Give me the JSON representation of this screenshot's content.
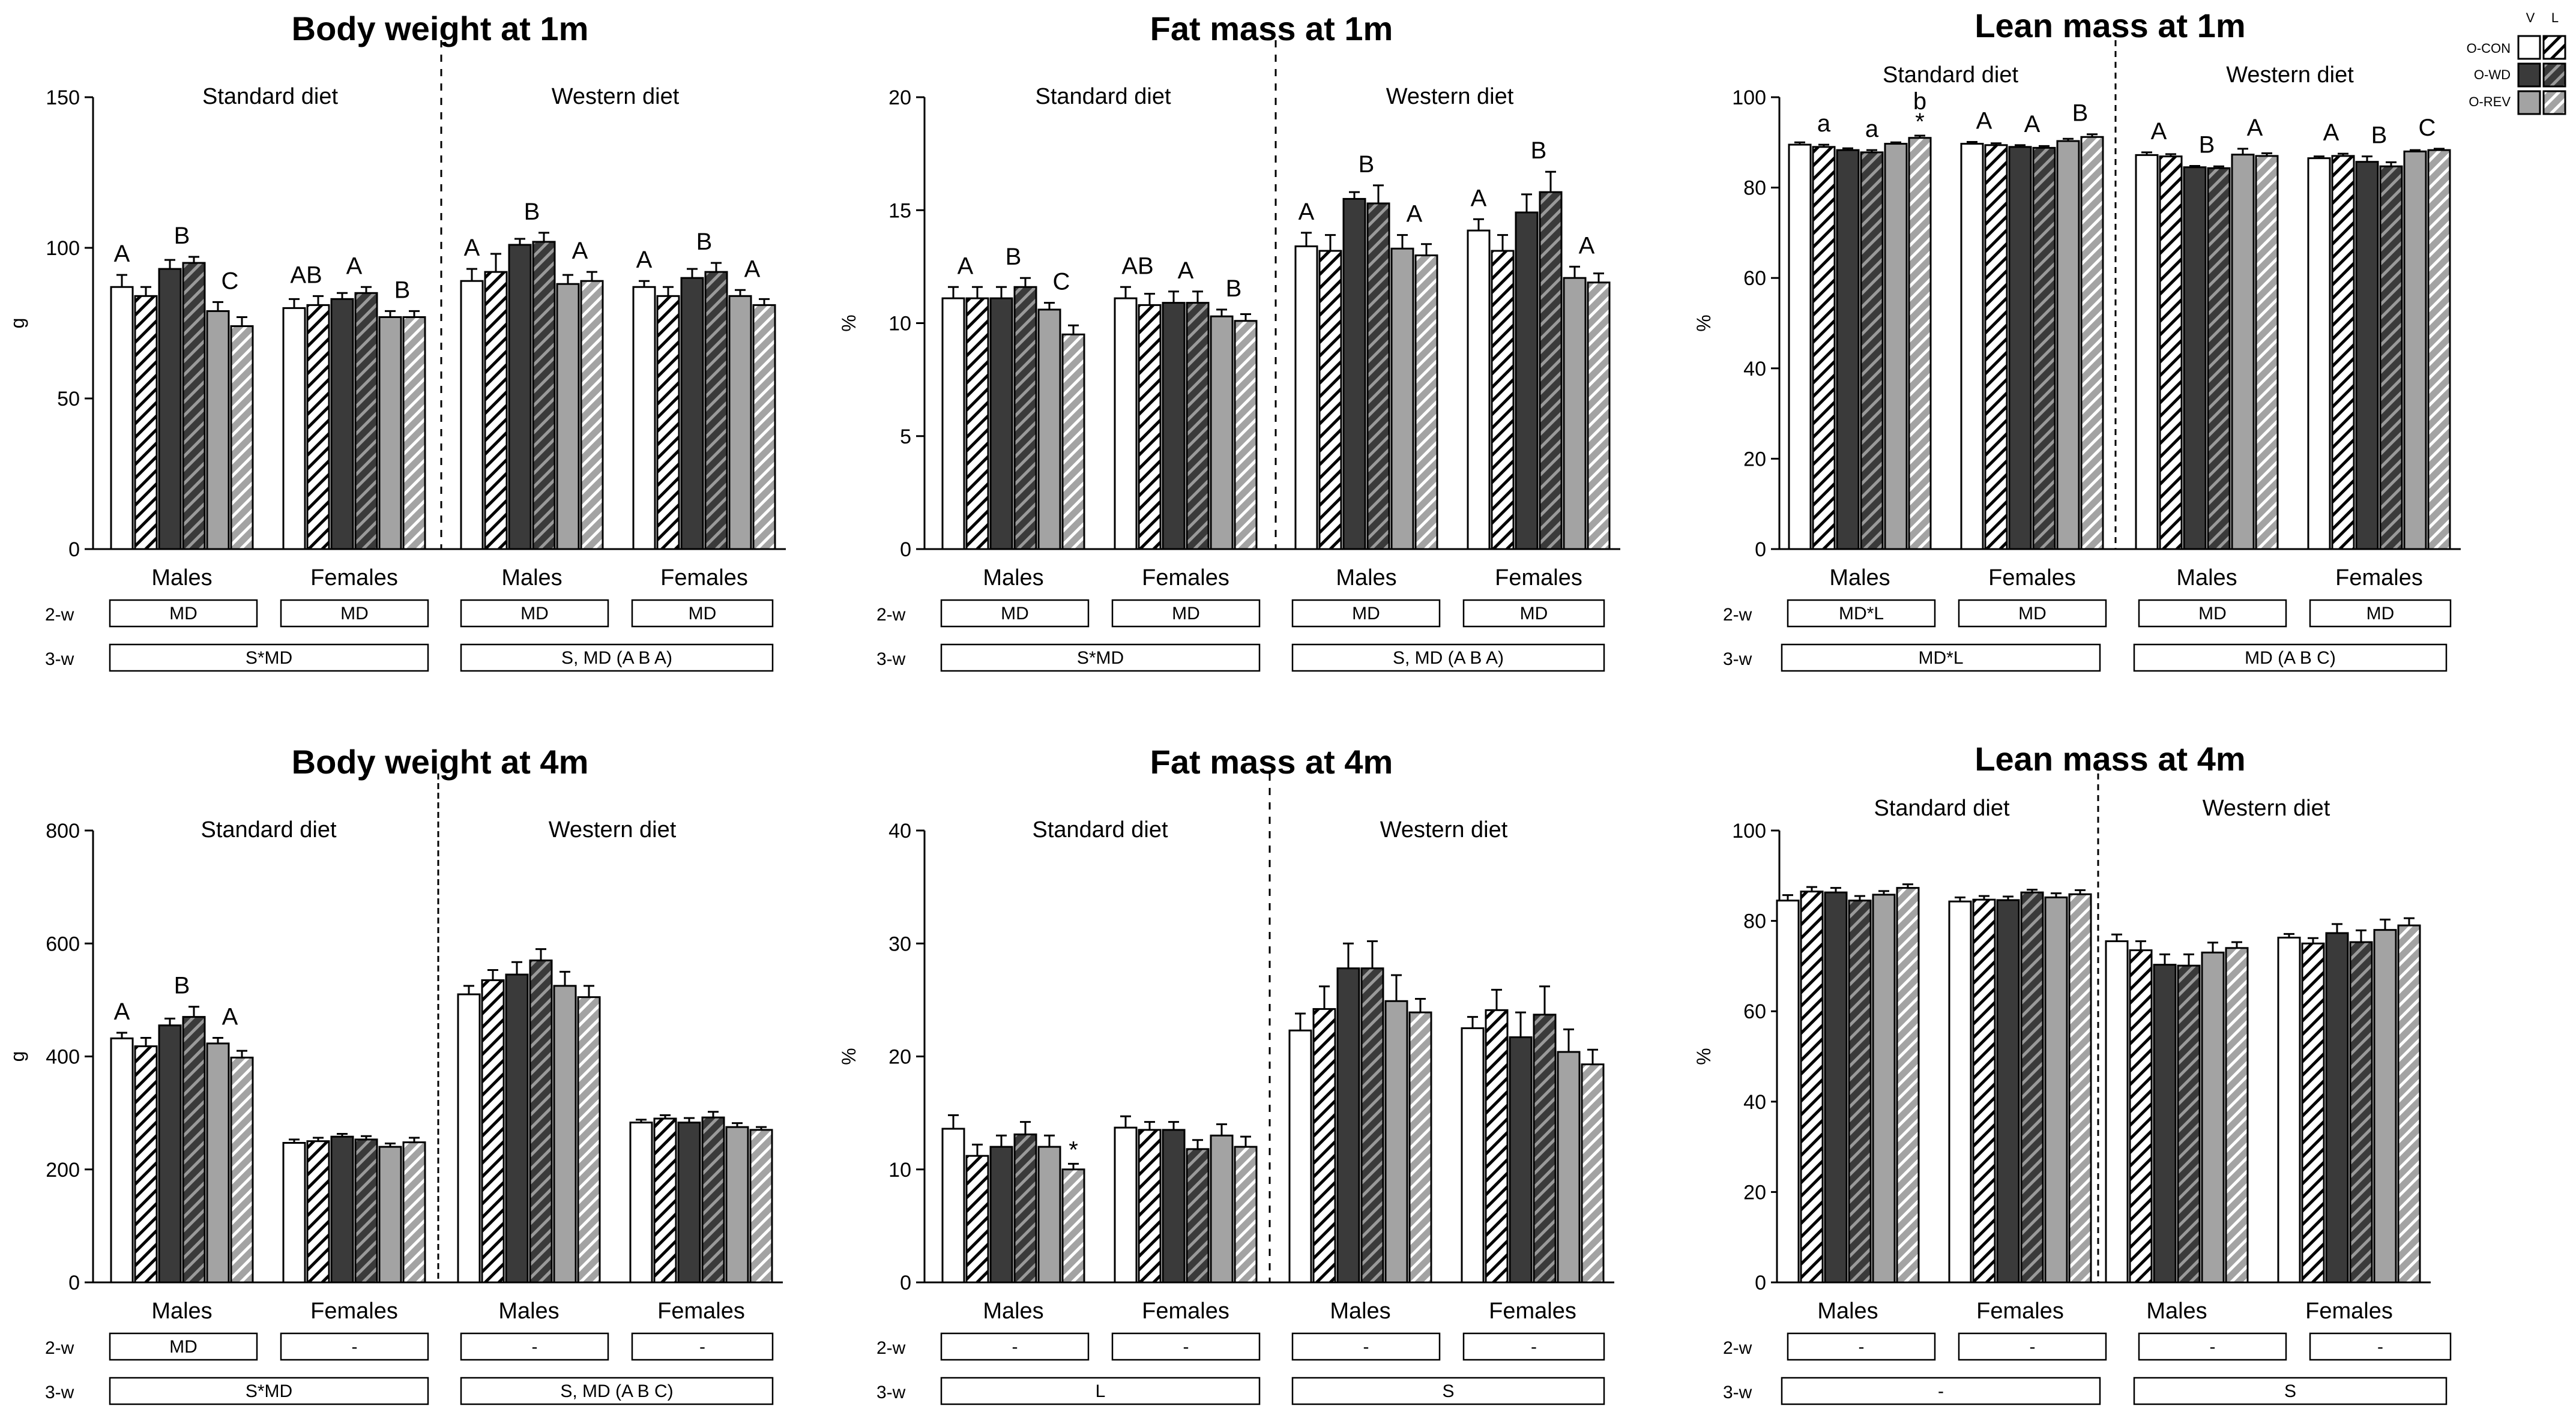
{
  "legend": {
    "col_headers": [
      "V",
      "L"
    ],
    "groups": [
      "O-CON",
      "O-WD",
      "O-REV"
    ],
    "colors": {
      "O-CON": "#ffffff",
      "O-WD": "#3a3a3a",
      "O-REV": "#a3a3a3"
    }
  },
  "chart_data": [
    {
      "type": "bar",
      "title": "Body weight at 1m",
      "ylabel": "g",
      "ylim": [
        0,
        150
      ],
      "yticks": [
        0,
        50,
        100,
        150
      ],
      "diets": [
        "Standard diet",
        "Western diet"
      ],
      "clusters": [
        "Males",
        "Females",
        "Males",
        "Females"
      ],
      "series_order": [
        "O-CON V",
        "O-CON L",
        "O-WD V",
        "O-WD L",
        "O-REV V",
        "O-REV L"
      ],
      "values": [
        [
          87,
          84,
          93,
          95,
          79,
          74
        ],
        [
          80,
          81,
          83,
          85,
          77,
          77
        ],
        [
          89,
          92,
          101,
          102,
          88,
          89
        ],
        [
          87,
          84,
          90,
          92,
          84,
          81
        ]
      ],
      "errors": [
        [
          4,
          3,
          3,
          2,
          3,
          3
        ],
        [
          3,
          3,
          2,
          2,
          2,
          2
        ],
        [
          4,
          6,
          2,
          3,
          3,
          3
        ],
        [
          2,
          3,
          3,
          3,
          2,
          2
        ]
      ],
      "annotations": [
        [
          {
            "i": 0,
            "t": "A"
          },
          {
            "i": 2.5,
            "t": "B"
          },
          {
            "i": 4.5,
            "t": "C"
          }
        ],
        [
          {
            "i": 0.5,
            "t": "AB"
          },
          {
            "i": 2.5,
            "t": "A"
          },
          {
            "i": 4.5,
            "t": "B"
          }
        ],
        [
          {
            "i": 0,
            "t": "A"
          },
          {
            "i": 2.5,
            "t": "B"
          },
          {
            "i": 4.5,
            "t": "A"
          }
        ],
        [
          {
            "i": 0,
            "t": "A"
          },
          {
            "i": 2.5,
            "t": "B"
          },
          {
            "i": 4.5,
            "t": "A"
          }
        ]
      ],
      "stats": {
        "w2_label": "2-w",
        "w3_label": "3-w",
        "w2": [
          "MD",
          "MD",
          "MD",
          "MD"
        ],
        "w3": [
          "S*MD",
          "S, MD (A B A)"
        ]
      }
    },
    {
      "type": "bar",
      "title": "Fat mass at 1m",
      "ylabel": "%",
      "ylim": [
        0,
        20
      ],
      "yticks": [
        0,
        5,
        10,
        15,
        20
      ],
      "diets": [
        "Standard diet",
        "Western diet"
      ],
      "clusters": [
        "Males",
        "Females",
        "Males",
        "Females"
      ],
      "series_order": [
        "O-CON V",
        "O-CON L",
        "O-WD V",
        "O-WD L",
        "O-REV V",
        "O-REV L"
      ],
      "values": [
        [
          11.1,
          11.1,
          11.1,
          11.6,
          10.6,
          9.5
        ],
        [
          11.1,
          10.8,
          10.9,
          10.9,
          10.3,
          10.1
        ],
        [
          13.4,
          13.2,
          15.5,
          15.3,
          13.3,
          13.0
        ],
        [
          14.1,
          13.2,
          14.9,
          15.8,
          12.0,
          11.8
        ]
      ],
      "errors": [
        [
          0.5,
          0.5,
          0.5,
          0.4,
          0.3,
          0.4
        ],
        [
          0.5,
          0.5,
          0.5,
          0.5,
          0.3,
          0.3
        ],
        [
          0.6,
          0.7,
          0.3,
          0.8,
          0.6,
          0.5
        ],
        [
          0.5,
          0.7,
          0.8,
          0.9,
          0.5,
          0.4
        ]
      ],
      "annotations": [
        [
          {
            "i": 0.5,
            "t": "A"
          },
          {
            "i": 2.5,
            "t": "B"
          },
          {
            "i": 4.5,
            "t": "C"
          }
        ],
        [
          {
            "i": 0.5,
            "t": "AB"
          },
          {
            "i": 2.5,
            "t": "A"
          },
          {
            "i": 4.5,
            "t": "B"
          }
        ],
        [
          {
            "i": 0,
            "t": "A"
          },
          {
            "i": 2.5,
            "t": "B"
          },
          {
            "i": 4.5,
            "t": "A"
          }
        ],
        [
          {
            "i": 0,
            "t": "A"
          },
          {
            "i": 2.5,
            "t": "B"
          },
          {
            "i": 4.5,
            "t": "A"
          }
        ]
      ],
      "stats": {
        "w2_label": "2-w",
        "w3_label": "3-w",
        "w2": [
          "MD",
          "MD",
          "MD",
          "MD"
        ],
        "w3": [
          "S*MD",
          "S, MD (A B A)"
        ]
      }
    },
    {
      "type": "bar",
      "title": "Lean mass at 1m",
      "ylabel": "%",
      "ylim": [
        0,
        100
      ],
      "yticks": [
        0,
        20,
        40,
        60,
        80,
        100
      ],
      "diets": [
        "Standard diet",
        "Western diet"
      ],
      "clusters": [
        "Males",
        "Females",
        "Males",
        "Females"
      ],
      "series_order": [
        "O-CON V",
        "O-CON L",
        "O-WD V",
        "O-WD L",
        "O-REV V",
        "O-REV L"
      ],
      "values": [
        [
          89.5,
          89.0,
          88.3,
          87.8,
          89.7,
          91.0
        ],
        [
          89.7,
          89.4,
          89.0,
          88.8,
          90.3,
          91.2
        ],
        [
          87.2,
          86.9,
          84.5,
          84.3,
          87.3,
          87.0
        ],
        [
          86.5,
          87.0,
          85.7,
          84.7,
          88.0,
          88.3
        ]
      ],
      "errors": [
        [
          0.5,
          0.5,
          0.4,
          0.5,
          0.3,
          0.5
        ],
        [
          0.4,
          0.4,
          0.4,
          0.4,
          0.5,
          0.6
        ],
        [
          0.6,
          0.5,
          0.3,
          0.4,
          1.3,
          0.6
        ],
        [
          0.4,
          0.5,
          1.2,
          0.9,
          0.3,
          0.3
        ]
      ],
      "annotations": [
        [
          {
            "i": 1,
            "t": "a"
          },
          {
            "i": 3,
            "t": "a"
          },
          {
            "i": 5,
            "t": "b"
          },
          {
            "i": 5,
            "t": "*",
            "star": true
          }
        ],
        [
          {
            "i": 0.5,
            "t": "A"
          },
          {
            "i": 2.5,
            "t": "A"
          },
          {
            "i": 4.5,
            "t": "B"
          }
        ],
        [
          {
            "i": 0.5,
            "t": "A"
          },
          {
            "i": 2.5,
            "t": "B"
          },
          {
            "i": 4.5,
            "t": "A"
          }
        ],
        [
          {
            "i": 0.5,
            "t": "A"
          },
          {
            "i": 2.5,
            "t": "B"
          },
          {
            "i": 4.5,
            "t": "C"
          }
        ]
      ],
      "stats": {
        "w2_label": "2-w",
        "w3_label": "3-w",
        "w2": [
          "MD*L",
          "MD",
          "MD",
          "MD"
        ],
        "w3": [
          "MD*L",
          "MD (A B C)"
        ]
      }
    },
    {
      "type": "bar",
      "title": "Body weight at 4m",
      "ylabel": "g",
      "ylim": [
        0,
        800
      ],
      "yticks": [
        0,
        200,
        400,
        600,
        800
      ],
      "diets": [
        "Standard diet",
        "Western diet"
      ],
      "clusters": [
        "Males",
        "Females",
        "Males",
        "Females"
      ],
      "series_order": [
        "O-CON V",
        "O-CON L",
        "O-WD V",
        "O-WD L",
        "O-REV V",
        "O-REV L"
      ],
      "values": [
        [
          432,
          418,
          455,
          470,
          423,
          398
        ],
        [
          247,
          250,
          258,
          253,
          240,
          248
        ],
        [
          510,
          535,
          545,
          570,
          525,
          505
        ],
        [
          283,
          290,
          283,
          292,
          275,
          270
        ]
      ],
      "errors": [
        [
          10,
          15,
          12,
          18,
          10,
          12
        ],
        [
          6,
          6,
          5,
          6,
          6,
          8
        ],
        [
          15,
          18,
          22,
          20,
          25,
          20
        ],
        [
          5,
          6,
          8,
          10,
          7,
          5
        ]
      ],
      "annotations": [
        [
          {
            "i": 0,
            "t": "A"
          },
          {
            "i": 2.5,
            "t": "B"
          },
          {
            "i": 4.5,
            "t": "A"
          }
        ],
        [],
        [],
        []
      ],
      "stats": {
        "w2_label": "2-w",
        "w3_label": "3-w",
        "w2": [
          "MD",
          "-",
          "-",
          "-"
        ],
        "w3": [
          "S*MD",
          "S, MD (A B C)"
        ]
      }
    },
    {
      "type": "bar",
      "title": "Fat mass at 4m",
      "ylabel": "%",
      "ylim": [
        0,
        40
      ],
      "yticks": [
        0,
        10,
        20,
        30,
        40
      ],
      "diets": [
        "Standard diet",
        "Western diet"
      ],
      "clusters": [
        "Males",
        "Females",
        "Males",
        "Females"
      ],
      "series_order": [
        "O-CON V",
        "O-CON L",
        "O-WD V",
        "O-WD L",
        "O-REV V",
        "O-REV L"
      ],
      "values": [
        [
          13.6,
          11.2,
          12.0,
          13.1,
          12.0,
          10.0
        ],
        [
          13.7,
          13.5,
          13.5,
          11.8,
          13.0,
          12.0
        ],
        [
          22.3,
          24.2,
          27.8,
          27.8,
          24.9,
          23.9
        ],
        [
          22.5,
          24.1,
          21.7,
          23.7,
          20.4,
          19.3
        ]
      ],
      "errors": [
        [
          1.2,
          1.0,
          1.0,
          1.1,
          1.0,
          0.5
        ],
        [
          1.0,
          0.7,
          0.7,
          0.8,
          1.0,
          0.9
        ],
        [
          1.5,
          2.0,
          2.2,
          2.4,
          2.3,
          1.2
        ],
        [
          1.0,
          1.8,
          2.2,
          2.5,
          2.0,
          1.3
        ]
      ],
      "annotations": [
        [
          {
            "i": 5,
            "t": "*",
            "star": true
          }
        ],
        [],
        [],
        []
      ],
      "stats": {
        "w2_label": "2-w",
        "w3_label": "3-w",
        "w2": [
          "-",
          "-",
          "-",
          "-"
        ],
        "w3": [
          "L",
          "S"
        ]
      }
    },
    {
      "type": "bar",
      "title": "Lean mass at 4m",
      "ylabel": "%",
      "ylim": [
        0,
        100
      ],
      "yticks": [
        0,
        20,
        40,
        60,
        80,
        100
      ],
      "diets": [
        "Standard diet",
        "Western diet"
      ],
      "clusters": [
        "Males",
        "Females",
        "Males",
        "Females"
      ],
      "series_order": [
        "O-CON V",
        "O-CON L",
        "O-WD V",
        "O-WD L",
        "O-REV V",
        "O-REV L"
      ],
      "values": [
        [
          84.5,
          86.5,
          86.3,
          84.5,
          85.8,
          87.3
        ],
        [
          84.3,
          84.7,
          84.6,
          86.3,
          85.2,
          85.9
        ],
        [
          75.5,
          73.5,
          70.3,
          70.1,
          73.0,
          74.0
        ],
        [
          76.3,
          75.0,
          77.3,
          75.3,
          78.0,
          79.0
        ]
      ],
      "errors": [
        [
          1.2,
          1.0,
          1.0,
          1.0,
          0.8,
          0.8
        ],
        [
          0.9,
          0.8,
          0.8,
          0.6,
          0.9,
          0.9
        ],
        [
          1.5,
          2.0,
          2.3,
          2.5,
          2.2,
          1.3
        ],
        [
          0.8,
          1.2,
          2.0,
          2.6,
          2.3,
          1.6
        ]
      ],
      "annotations": [
        [],
        [],
        [],
        []
      ],
      "stats": {
        "w2_label": "2-w",
        "w3_label": "3-w",
        "w2": [
          "-",
          "-",
          "-",
          "-"
        ],
        "w3": [
          "-",
          "S"
        ]
      }
    }
  ]
}
